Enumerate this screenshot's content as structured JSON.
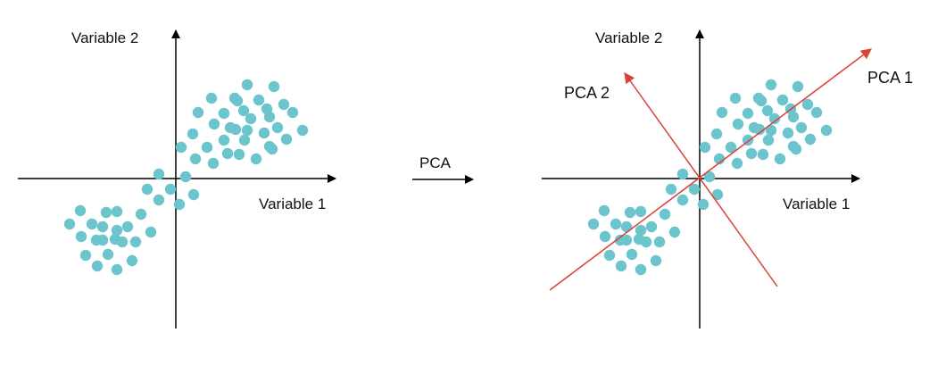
{
  "colors": {
    "points": "#6cc5cd",
    "axes": "#000000",
    "pca_axes": "#d9433a",
    "text": "#111111"
  },
  "left_panel": {
    "x_axis_label": "Variable 1",
    "y_axis_label": "Variable 2"
  },
  "transition": {
    "label": "PCA"
  },
  "right_panel": {
    "x_axis_label": "Variable 1",
    "y_axis_label": "Variable 2",
    "pca1_label": "PCA 1",
    "pca2_label": "PCA 2"
  }
}
